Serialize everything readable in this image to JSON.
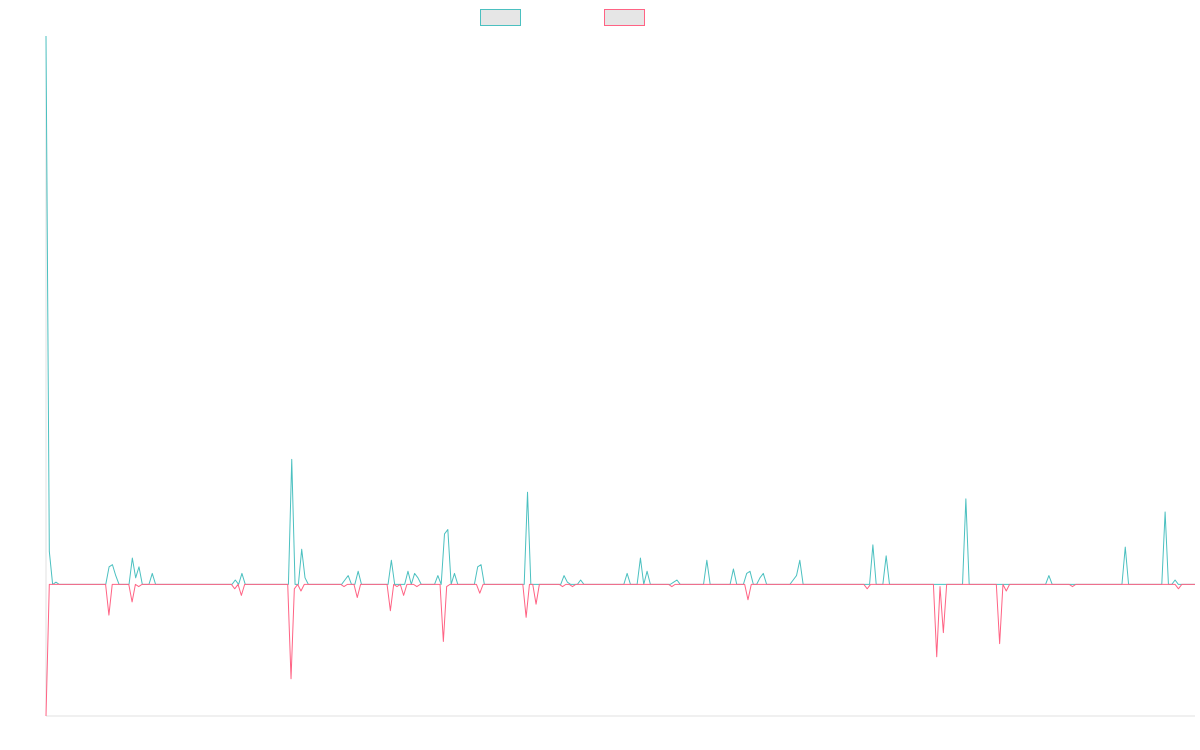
{
  "chart_data": {
    "type": "line",
    "title": "",
    "xlabel": "",
    "ylabel": "",
    "grid": false,
    "legend_placement": "top-center",
    "ylim": [
      -60,
      250
    ],
    "series": [
      {
        "color": "#4bc0c0",
        "values": [
          250,
          15,
          0,
          1,
          0,
          0,
          0,
          0,
          0,
          0,
          0,
          0,
          0,
          0,
          0,
          0,
          0,
          0,
          0,
          8,
          9,
          4,
          0,
          0,
          0,
          0,
          12,
          3,
          8,
          0,
          0,
          0,
          5,
          0,
          0,
          0,
          0,
          0,
          0,
          0,
          0,
          0,
          0,
          0,
          0,
          0,
          0,
          0,
          0,
          0,
          0,
          0,
          0,
          0,
          0,
          0,
          0,
          2,
          0,
          5,
          0,
          0,
          0,
          0,
          0,
          0,
          0,
          0,
          0,
          0,
          0,
          0,
          0,
          0,
          57,
          0,
          0,
          16,
          3,
          0,
          0,
          0,
          0,
          0,
          0,
          0,
          0,
          0,
          0,
          0,
          2,
          4,
          0,
          0,
          6,
          0,
          0,
          0,
          0,
          0,
          0,
          0,
          0,
          0,
          11,
          0,
          0,
          0,
          0,
          6,
          0,
          5,
          3,
          0,
          0,
          0,
          0,
          0,
          4,
          0,
          23,
          25,
          0,
          5,
          0,
          0,
          0,
          0,
          0,
          0,
          8,
          9,
          0,
          0,
          0,
          0,
          0,
          0,
          0,
          0,
          0,
          0,
          0,
          0,
          0,
          42,
          0,
          0,
          0,
          0,
          0,
          0,
          0,
          0,
          0,
          0,
          4,
          1,
          0,
          0,
          0,
          2,
          0,
          0,
          0,
          0,
          0,
          0,
          0,
          0,
          0,
          0,
          0,
          0,
          0,
          5,
          0,
          0,
          0,
          12,
          0,
          6,
          0,
          0,
          0,
          0,
          0,
          0,
          0,
          1,
          2,
          0,
          0,
          0,
          0,
          0,
          0,
          0,
          0,
          11,
          0,
          0,
          0,
          0,
          0,
          0,
          0,
          7,
          0,
          0,
          0,
          5,
          6,
          0,
          0,
          3,
          5,
          0,
          0,
          0,
          0,
          0,
          0,
          0,
          0,
          2,
          4,
          11,
          0,
          0,
          0,
          0,
          0,
          0,
          0,
          0,
          0,
          0,
          0,
          0,
          0,
          0,
          0,
          0,
          0,
          0,
          0,
          0,
          0,
          18,
          0,
          0,
          0,
          13,
          0,
          0,
          0,
          0,
          0,
          0,
          0,
          0,
          0,
          0,
          0,
          0,
          0,
          0,
          0,
          0,
          0,
          0,
          0,
          0,
          0,
          0,
          0,
          39,
          0,
          0,
          0,
          0,
          0,
          0,
          0,
          0,
          0,
          0,
          0,
          0,
          0,
          0,
          0,
          0,
          0,
          0,
          0,
          0,
          0,
          0,
          0,
          0,
          4,
          0,
          0,
          0,
          0,
          0,
          0,
          0,
          0,
          0,
          0,
          0,
          0,
          0,
          0,
          0,
          0,
          0,
          0,
          0,
          0,
          0,
          0,
          17,
          0,
          0,
          0,
          0,
          0,
          0,
          0,
          0,
          0,
          0,
          0,
          33,
          0,
          0,
          2,
          0,
          0,
          0,
          0,
          0,
          0
        ]
      },
      {
        "color": "#ff6384",
        "values": [
          -60,
          0,
          0,
          0,
          0,
          0,
          0,
          0,
          0,
          0,
          0,
          0,
          0,
          0,
          0,
          0,
          0,
          0,
          0,
          -14,
          0,
          0,
          0,
          0,
          0,
          0,
          -8,
          0,
          -1,
          0,
          0,
          0,
          0,
          0,
          0,
          0,
          0,
          0,
          0,
          0,
          0,
          0,
          0,
          0,
          0,
          0,
          0,
          0,
          0,
          0,
          0,
          0,
          0,
          0,
          0,
          0,
          0,
          -2,
          0,
          -5,
          0,
          0,
          0,
          0,
          0,
          0,
          0,
          0,
          0,
          0,
          0,
          0,
          0,
          0,
          -43,
          -2,
          0,
          -3,
          0,
          0,
          0,
          0,
          0,
          0,
          0,
          0,
          0,
          0,
          0,
          0,
          -1,
          0,
          0,
          0,
          -6,
          0,
          0,
          0,
          0,
          0,
          0,
          0,
          0,
          0,
          -12,
          0,
          -1,
          0,
          -5,
          0,
          0,
          0,
          -1,
          0,
          0,
          0,
          0,
          0,
          0,
          0,
          -26,
          -1,
          0,
          0,
          0,
          0,
          0,
          0,
          0,
          0,
          0,
          -4,
          0,
          0,
          0,
          0,
          0,
          0,
          0,
          0,
          0,
          0,
          0,
          0,
          0,
          -15,
          0,
          0,
          -9,
          0,
          0,
          0,
          0,
          0,
          0,
          0,
          -1,
          0,
          0,
          -1,
          0,
          0,
          0,
          0,
          0,
          0,
          0,
          0,
          0,
          0,
          0,
          0,
          0,
          0,
          0,
          0,
          0,
          0,
          0,
          0,
          0,
          0,
          0,
          0,
          0,
          0,
          0,
          0,
          0,
          -1,
          0,
          0,
          0,
          0,
          0,
          0,
          0,
          0,
          0,
          0,
          0,
          0,
          0,
          0,
          0,
          0,
          0,
          0,
          0,
          0,
          0,
          0,
          -7,
          0,
          0,
          0,
          0,
          0,
          0,
          0,
          0,
          0,
          0,
          0,
          0,
          0,
          0,
          0,
          0,
          0,
          0,
          0,
          0,
          0,
          0,
          0,
          0,
          0,
          0,
          0,
          0,
          0,
          0,
          0,
          0,
          0,
          0,
          0,
          -2,
          0,
          0,
          0,
          0,
          0,
          0,
          0,
          0,
          0,
          0,
          0,
          0,
          0,
          0,
          0,
          0,
          0,
          0,
          0,
          0,
          -33,
          -1,
          -22,
          0,
          0,
          0,
          0,
          0,
          0,
          0,
          0,
          0,
          0,
          0,
          0,
          0,
          0,
          0,
          0,
          -27,
          0,
          -3,
          0,
          0,
          0,
          0,
          0,
          0,
          0,
          0,
          0,
          0,
          0,
          0,
          0,
          0,
          0,
          0,
          0,
          0,
          0,
          -1,
          0,
          0,
          0,
          0,
          0,
          0,
          0,
          0,
          0,
          0,
          0,
          0,
          0,
          0,
          0,
          0,
          0,
          0,
          0,
          0,
          0,
          0,
          0,
          0,
          0,
          0,
          0,
          0,
          0,
          0,
          0,
          -2,
          0,
          0,
          0,
          0,
          0
        ]
      }
    ]
  }
}
